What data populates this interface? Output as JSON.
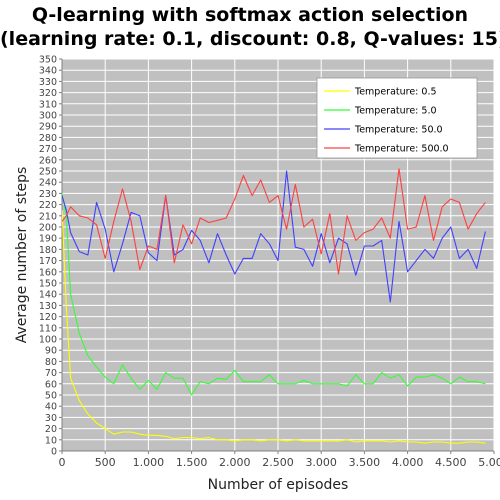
{
  "chart_data": {
    "type": "line",
    "title_line1": "Q-learning with softmax action selection",
    "title_line2": "(learning rate: 0.1, discount: 0.8, Q-values: 15)",
    "xlabel": "Number of episodes",
    "ylabel": "Average number of steps",
    "xlim": [
      0,
      5000
    ],
    "ylim": [
      0,
      350
    ],
    "grid": true,
    "legend_position": "top-right",
    "background_color": "#c0c0c0",
    "grid_color": "#ffffff",
    "x_ticks": [
      {
        "value": 0,
        "label": "0"
      },
      {
        "value": 500,
        "label": "500"
      },
      {
        "value": 1000,
        "label": "1.000"
      },
      {
        "value": 1500,
        "label": "1.500"
      },
      {
        "value": 2000,
        "label": "2.000"
      },
      {
        "value": 2500,
        "label": "2.500"
      },
      {
        "value": 3000,
        "label": "3.000"
      },
      {
        "value": 3500,
        "label": "3.500"
      },
      {
        "value": 4000,
        "label": "4.000"
      },
      {
        "value": 4500,
        "label": "4.500"
      },
      {
        "value": 5000,
        "label": "5.000"
      }
    ],
    "y_ticks": [
      {
        "value": 0,
        "label": "0"
      },
      {
        "value": 10,
        "label": "10"
      },
      {
        "value": 20,
        "label": "20"
      },
      {
        "value": 30,
        "label": "30"
      },
      {
        "value": 40,
        "label": "40"
      },
      {
        "value": 50,
        "label": "50"
      },
      {
        "value": 60,
        "label": "60"
      },
      {
        "value": 70,
        "label": "70"
      },
      {
        "value": 80,
        "label": "80"
      },
      {
        "value": 90,
        "label": "90"
      },
      {
        "value": 100,
        "label": "100"
      },
      {
        "value": 110,
        "label": "110"
      },
      {
        "value": 120,
        "label": "120"
      },
      {
        "value": 130,
        "label": "130"
      },
      {
        "value": 140,
        "label": "140"
      },
      {
        "value": 150,
        "label": "150"
      },
      {
        "value": 160,
        "label": "160"
      },
      {
        "value": 170,
        "label": "170"
      },
      {
        "value": 180,
        "label": "180"
      },
      {
        "value": 190,
        "label": "190"
      },
      {
        "value": 200,
        "label": "200"
      },
      {
        "value": 210,
        "label": "210"
      },
      {
        "value": 220,
        "label": "220"
      },
      {
        "value": 230,
        "label": "230"
      },
      {
        "value": 240,
        "label": "240"
      },
      {
        "value": 250,
        "label": "250"
      },
      {
        "value": 260,
        "label": "260"
      },
      {
        "value": 270,
        "label": "270"
      },
      {
        "value": 280,
        "label": "280"
      },
      {
        "value": 290,
        "label": "290"
      },
      {
        "value": 300,
        "label": "300"
      },
      {
        "value": 310,
        "label": "310"
      },
      {
        "value": 320,
        "label": "320"
      },
      {
        "value": 330,
        "label": "330"
      },
      {
        "value": 340,
        "label": "340"
      },
      {
        "value": 350,
        "label": "350"
      }
    ],
    "x": [
      0,
      50,
      100,
      200,
      300,
      400,
      500,
      600,
      700,
      800,
      900,
      1000,
      1100,
      1200,
      1300,
      1400,
      1500,
      1600,
      1700,
      1800,
      1900,
      2000,
      2100,
      2200,
      2300,
      2400,
      2500,
      2600,
      2700,
      2800,
      2900,
      3000,
      3100,
      3200,
      3300,
      3400,
      3500,
      3600,
      3700,
      3800,
      3900,
      4000,
      4100,
      4200,
      4300,
      4400,
      4500,
      4600,
      4700,
      4800,
      4900
    ],
    "series": [
      {
        "name": "Temperature: 0.5",
        "color": "#ffff00",
        "values": [
          215,
          130,
          65,
          45,
          33,
          25,
          20,
          15,
          17,
          17,
          15,
          14,
          14,
          13,
          11,
          12,
          12,
          11,
          12,
          10,
          10,
          9,
          10,
          10,
          9,
          10,
          10,
          9,
          10,
          9,
          9,
          9,
          9,
          9,
          10,
          8,
          9,
          9,
          9,
          8,
          9,
          8,
          8,
          7,
          8,
          8,
          7,
          7,
          8,
          8,
          7
        ]
      },
      {
        "name": "Temperature: 5.0",
        "color": "#33ff33",
        "values": [
          230,
          210,
          140,
          105,
          85,
          75,
          66,
          60,
          77,
          65,
          55,
          63,
          55,
          70,
          65,
          65,
          50,
          62,
          60,
          65,
          64,
          72,
          62,
          62,
          62,
          68,
          60,
          60,
          60,
          63,
          60,
          60,
          60,
          60,
          58,
          68,
          60,
          60,
          70,
          65,
          68,
          58,
          66,
          66,
          68,
          65,
          60,
          66,
          62,
          62,
          60
        ]
      },
      {
        "name": "Temperature: 50.0",
        "color": "#4040ff",
        "values": [
          228,
          215,
          195,
          178,
          175,
          222,
          198,
          160,
          185,
          213,
          210,
          177,
          170,
          228,
          175,
          180,
          197,
          188,
          168,
          194,
          175,
          158,
          172,
          172,
          194,
          185,
          170,
          250,
          182,
          180,
          165,
          194,
          168,
          190,
          185,
          157,
          183,
          183,
          188,
          133,
          205,
          160,
          170,
          180,
          172,
          190,
          200,
          172,
          180,
          163,
          196
        ]
      },
      {
        "name": "Temperature: 500.0",
        "color": "#ff4040",
        "values": [
          205,
          210,
          218,
          210,
          208,
          202,
          172,
          205,
          234,
          205,
          162,
          183,
          180,
          228,
          168,
          202,
          185,
          208,
          204,
          206,
          208,
          225,
          246,
          228,
          242,
          222,
          228,
          198,
          238,
          200,
          207,
          176,
          212,
          158,
          210,
          188,
          195,
          198,
          208,
          190,
          252,
          198,
          200,
          228,
          188,
          218,
          225,
          222,
          198,
          212,
          222
        ]
      }
    ]
  }
}
